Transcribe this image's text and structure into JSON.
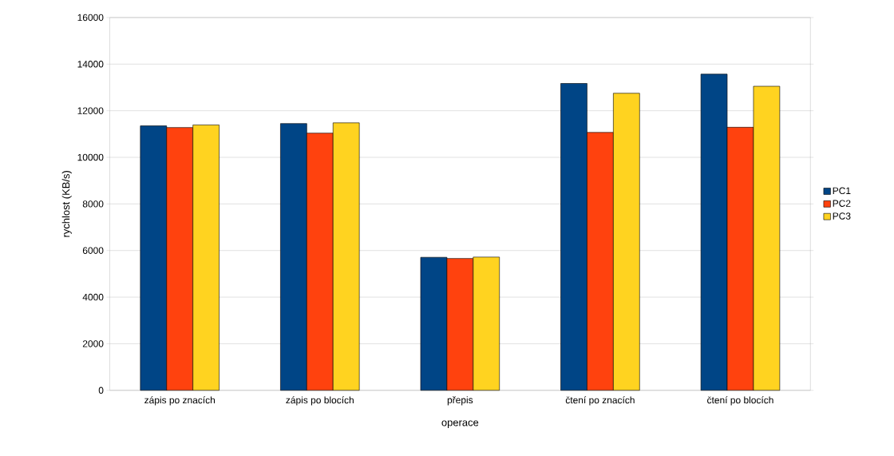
{
  "chart_data": {
    "type": "bar",
    "xlabel": "operace",
    "ylabel": "rychlost (KB/s)",
    "categories": [
      "zápis po znacích",
      "zápis po blocích",
      "přepis",
      "čtení po znacích",
      "čtení po blocích"
    ],
    "series": [
      {
        "name": "PC1",
        "color": "#004586",
        "values": [
          11350,
          11450,
          5710,
          13170,
          13570
        ]
      },
      {
        "name": "PC2",
        "color": "#ff420e",
        "values": [
          11280,
          11040,
          5660,
          11070,
          11290
        ]
      },
      {
        "name": "PC3",
        "color": "#ffd320",
        "values": [
          11390,
          11480,
          5720,
          12750,
          13050
        ]
      }
    ],
    "ylim": [
      0,
      16000
    ],
    "yticks": [
      0,
      2000,
      4000,
      6000,
      8000,
      10000,
      12000,
      14000,
      16000
    ],
    "grid": "y",
    "legend": "right"
  }
}
